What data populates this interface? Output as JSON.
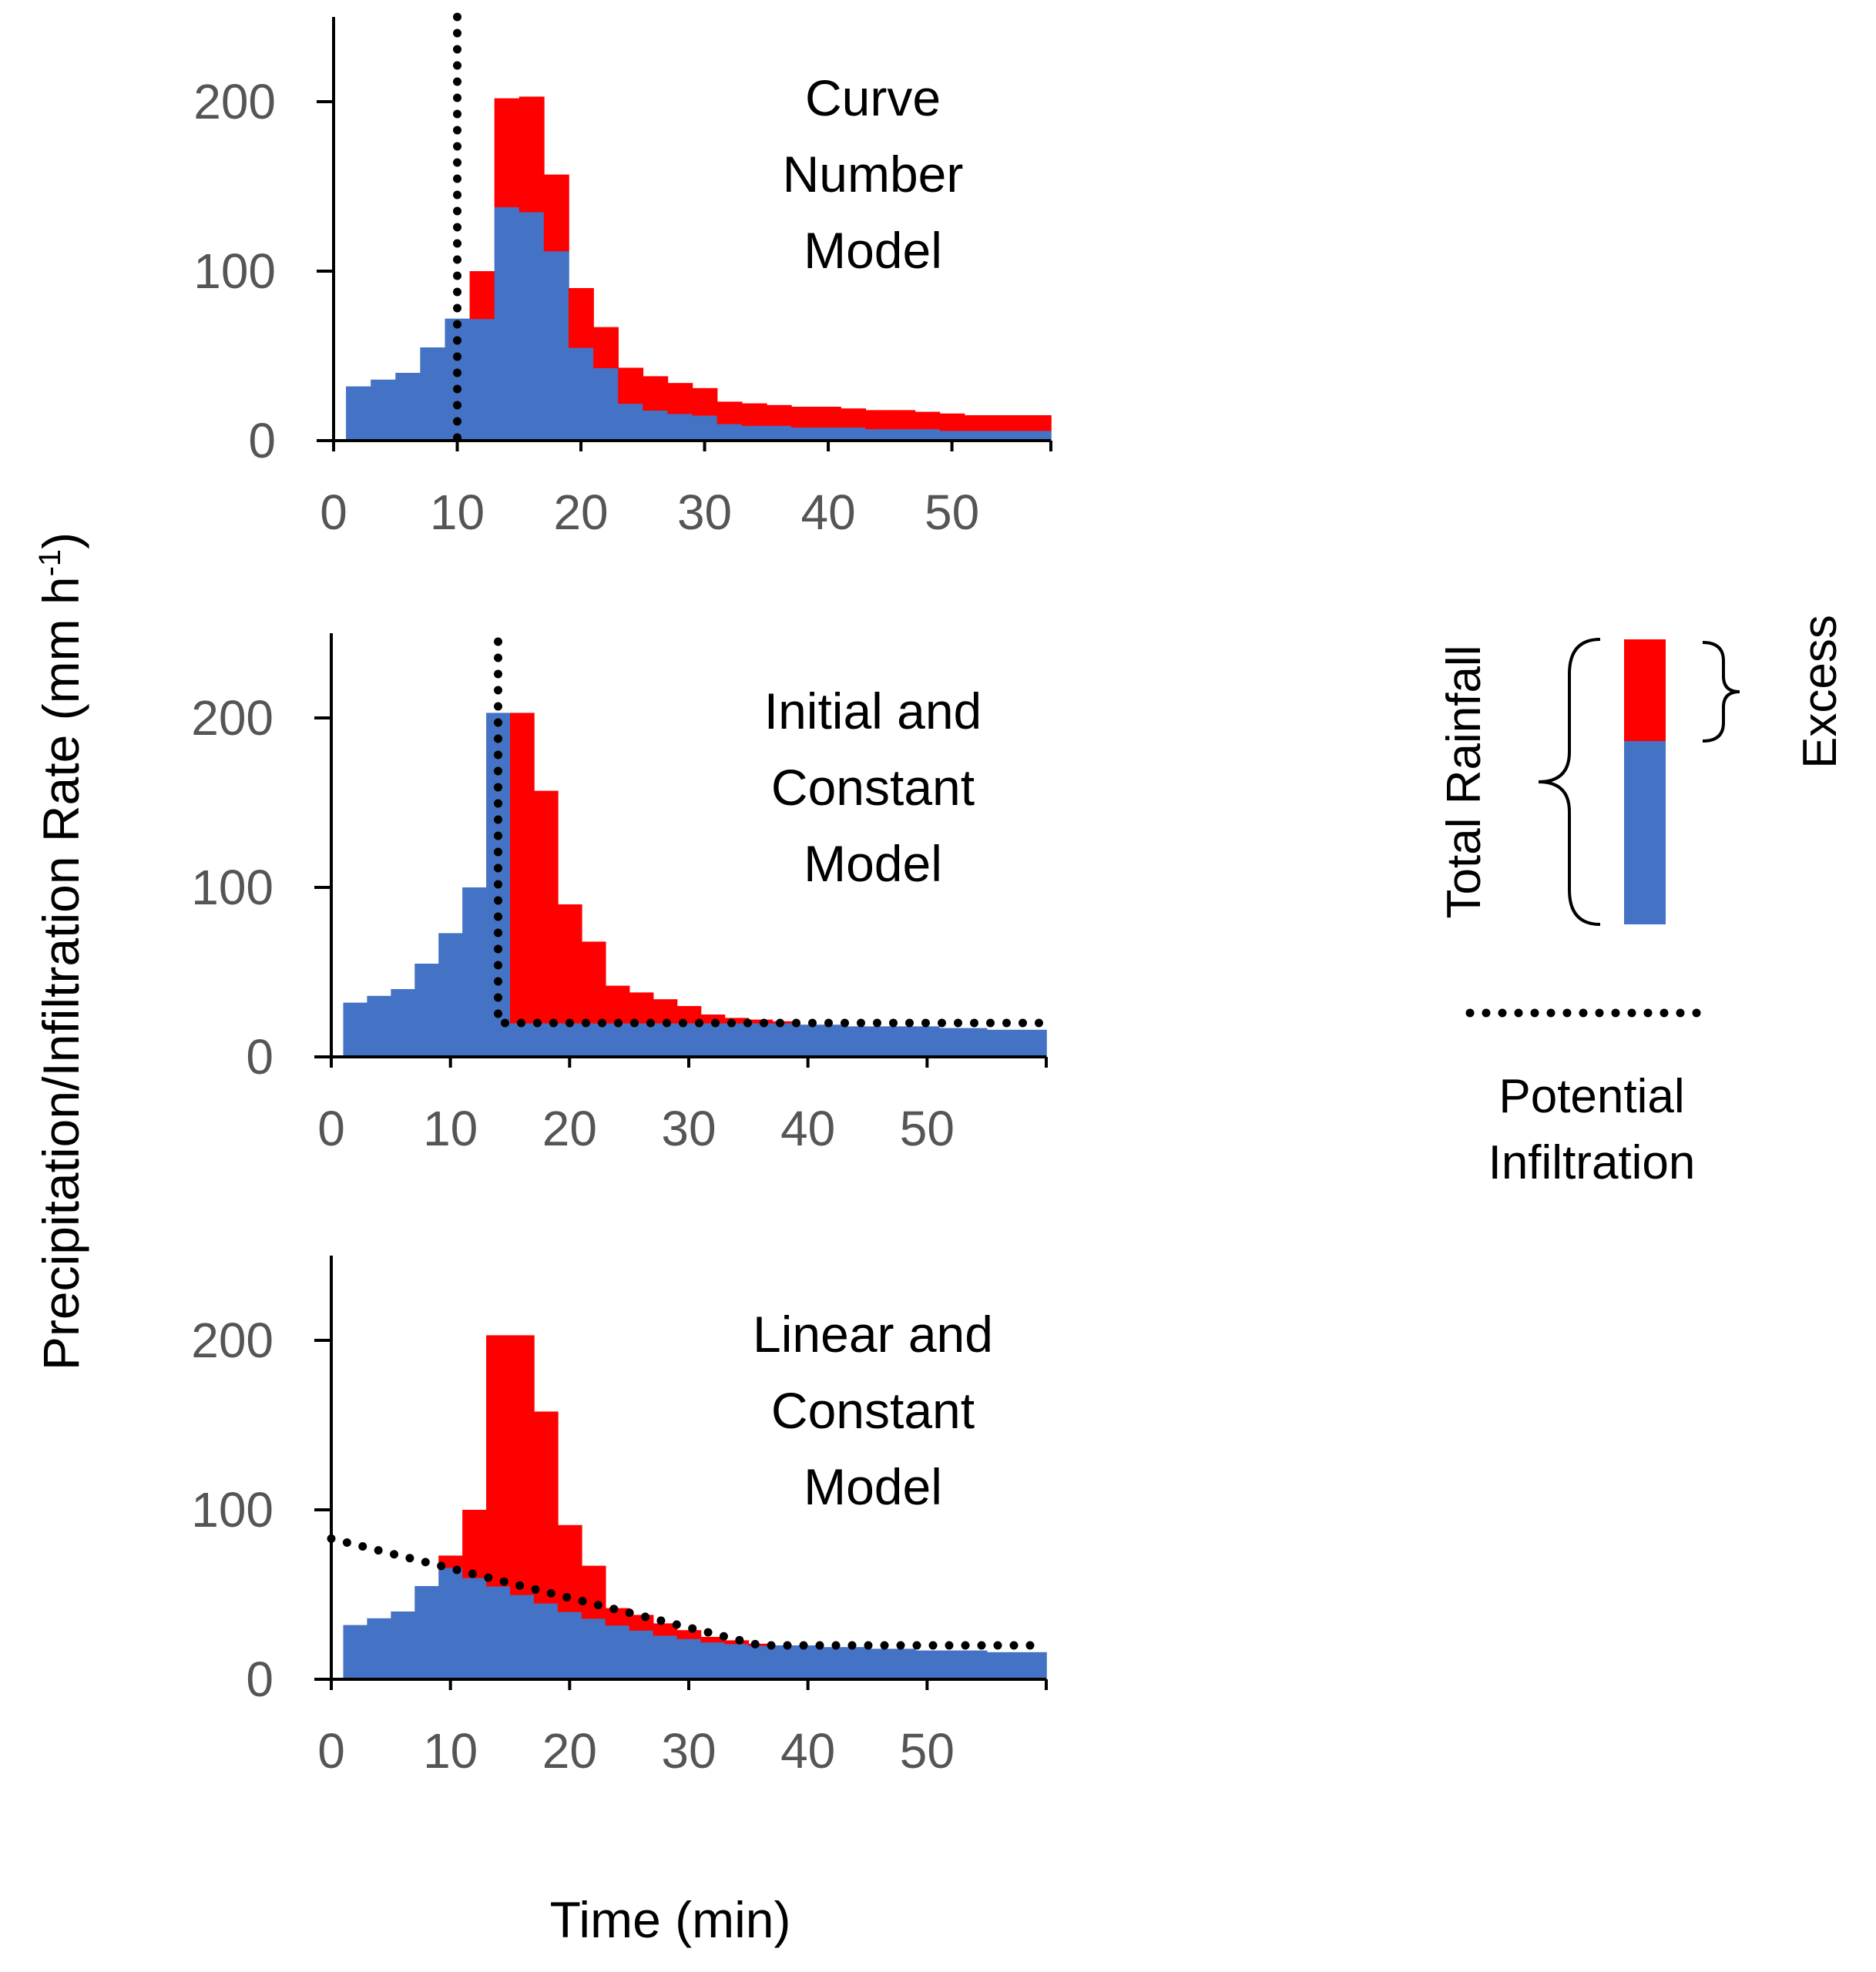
{
  "figure": {
    "ylabel": "Precipitation/Infiltration Rate (mm h",
    "ylabel_sup": "-1",
    "ylabel_close": ")",
    "xlabel": "Time (min)"
  },
  "colors": {
    "infiltration": "#4472C4",
    "excess": "#FF0000",
    "potential": "#000000"
  },
  "legend": {
    "total_rainfall": "Total Rainfall",
    "excess": "Excess",
    "potential_line1": "Potential",
    "potential_line2": "Infiltration"
  },
  "chart_data": [
    {
      "type": "bar",
      "stacked": true,
      "title_lines": [
        "Curve",
        "Number",
        "Model"
      ],
      "xlim": [
        0,
        58
      ],
      "ylim": [
        0,
        250
      ],
      "xticks": [
        0,
        10,
        20,
        30,
        40,
        50
      ],
      "yticks": [
        0,
        100,
        200
      ],
      "bin_edges": [
        1,
        3,
        5,
        7,
        9,
        11,
        13,
        15,
        17,
        19,
        21,
        23,
        25,
        27,
        29,
        31,
        33,
        35,
        37,
        39,
        41,
        43,
        45,
        47,
        49,
        51,
        53,
        55,
        58
      ],
      "series": [
        {
          "name": "Infiltration",
          "values": [
            32,
            36,
            40,
            55,
            72,
            72,
            138,
            135,
            112,
            55,
            43,
            22,
            18,
            16,
            15,
            10,
            9,
            9,
            8,
            8,
            8,
            7,
            7,
            7,
            6,
            6,
            6,
            6
          ]
        },
        {
          "name": "Excess",
          "values": [
            0,
            0,
            0,
            0,
            0,
            28,
            64,
            68,
            45,
            35,
            24,
            21,
            20,
            18,
            16,
            13,
            13,
            12,
            12,
            12,
            11,
            11,
            11,
            10,
            10,
            9,
            9,
            9
          ]
        }
      ],
      "potential_infiltration": {
        "type": "vertical",
        "x": 10
      }
    },
    {
      "type": "bar",
      "stacked": true,
      "title_lines": [
        "Initial and",
        "Constant",
        "Model"
      ],
      "xlim": [
        0,
        60
      ],
      "ylim": [
        0,
        250
      ],
      "xticks": [
        0,
        10,
        20,
        30,
        40,
        50
      ],
      "yticks": [
        0,
        100,
        200
      ],
      "bin_edges": [
        1,
        3,
        5,
        7,
        9,
        11,
        13,
        15,
        17,
        19,
        21,
        23,
        25,
        27,
        29,
        31,
        33,
        35,
        37,
        39,
        41,
        43,
        45,
        47,
        49,
        51,
        53,
        55,
        57,
        60
      ],
      "series": [
        {
          "name": "Infiltration",
          "values": [
            32,
            36,
            40,
            55,
            73,
            100,
            203,
            20,
            20,
            20,
            20,
            20,
            20,
            20,
            20,
            20,
            20,
            20,
            20,
            19,
            19,
            18,
            18,
            18,
            18,
            17,
            17,
            16,
            16
          ]
        },
        {
          "name": "Excess",
          "values": [
            0,
            0,
            0,
            0,
            0,
            0,
            0,
            183,
            137,
            70,
            48,
            22,
            18,
            14,
            10,
            5,
            3,
            2,
            1,
            0,
            0,
            0,
            0,
            0,
            0,
            0,
            0,
            0,
            0
          ]
        }
      ],
      "potential_infiltration": {
        "type": "step",
        "x_drop": 14,
        "y_high": 245,
        "y_constant": 20,
        "x_end": 60
      }
    },
    {
      "type": "bar",
      "stacked": true,
      "title_lines": [
        "Linear and",
        "Constant",
        "Model"
      ],
      "xlim": [
        0,
        60
      ],
      "ylim": [
        0,
        250
      ],
      "xticks": [
        0,
        10,
        20,
        30,
        40,
        50
      ],
      "yticks": [
        0,
        100,
        200
      ],
      "bin_edges": [
        1,
        3,
        5,
        7,
        9,
        11,
        13,
        15,
        17,
        19,
        21,
        23,
        25,
        27,
        29,
        31,
        33,
        35,
        37,
        39,
        41,
        43,
        45,
        47,
        49,
        51,
        53,
        55,
        57,
        60
      ],
      "series": [
        {
          "name": "Infiltration",
          "values": [
            32,
            36,
            40,
            55,
            66,
            60,
            55,
            50,
            45,
            40,
            36,
            32,
            29,
            26,
            24,
            22,
            21,
            20,
            20,
            20,
            19,
            19,
            18,
            18,
            17,
            17,
            17,
            16,
            16
          ]
        },
        {
          "name": "Excess",
          "values": [
            0,
            0,
            0,
            0,
            7,
            40,
            148,
            153,
            113,
            51,
            31,
            10,
            9,
            7,
            5,
            3,
            2,
            1,
            0,
            0,
            0,
            0,
            0,
            0,
            0,
            0,
            0,
            0,
            0
          ]
        }
      ],
      "potential_infiltration": {
        "type": "linear-constant",
        "x_start": 0,
        "y_start": 83,
        "x_knee": 36,
        "y_constant": 20,
        "x_end": 60
      }
    }
  ]
}
